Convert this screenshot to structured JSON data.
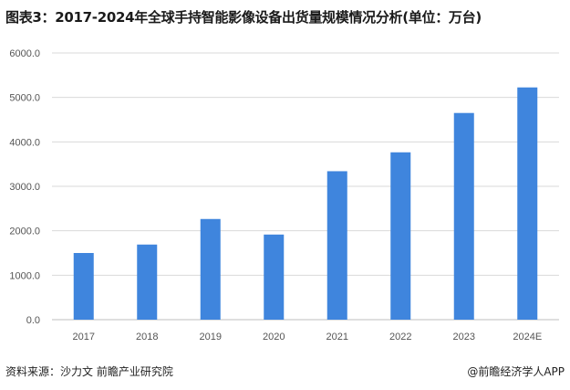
{
  "title": "图表3：2017-2024年全球手持智能影像设备出货量规模情况分析(单位：万台)",
  "source": "资料来源：沙力文 前瞻产业研究院",
  "credit": "@前瞻经济学人APP",
  "chart_data": {
    "type": "bar",
    "title": "图表3：2017-2024年全球手持智能影像设备出货量规模情况分析(单位：万台)",
    "categories": [
      "2017",
      "2018",
      "2019",
      "2020",
      "2021",
      "2022",
      "2023",
      "2024E"
    ],
    "values": [
      1500,
      1690,
      2265,
      1915,
      3340,
      3765,
      4650,
      5225
    ],
    "ylim": [
      0,
      6000
    ],
    "yticks": [
      "0.0",
      "1000.0",
      "2000.0",
      "3000.0",
      "4000.0",
      "5000.0",
      "6000.0"
    ],
    "grid": true,
    "legend": "none",
    "bar_color": "#3f85dd"
  }
}
